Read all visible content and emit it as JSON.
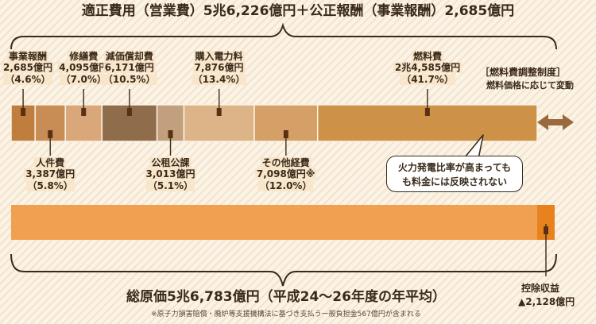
{
  "top_title": "適正費用（営業費）5兆6,226億円＋公正報酬（事業報酬）2,685億円",
  "bottom_title": "総原価5兆6,783億円（平成24～26年度の年平均）",
  "footnote": "※原子力損害賠償・廃炉等支援機構法に基づき支払う一般負担金567億円が含まれる",
  "fuel_system": {
    "title": "［燃料費調整制度］",
    "subtitle": "燃料価格に応じて変動"
  },
  "bubble": {
    "line1": "火力発電比率が高まっても",
    "line2": "も料金には反映されない"
  },
  "deduction": {
    "name": "控除収益",
    "amount": "▲2,128億円"
  },
  "colors": {
    "top_bar": [
      "#bf7d3e",
      "#c88d55",
      "#d9a77a",
      "#8f6c4a",
      "#c2a07e",
      "#ddb488",
      "#d5a067",
      "#cd9148"
    ],
    "bottom_bar": "#f0a050",
    "bottom_deduction": "#e8821e",
    "arrow": "#9a6a3e"
  },
  "chart_data": {
    "type": "bar",
    "categories": [
      "事業報酬",
      "人件費",
      "修繕費",
      "減価償却費",
      "公租公課",
      "購入電力料",
      "その他経費",
      "燃料費"
    ],
    "values": [
      2685,
      3387,
      4095,
      6171,
      3013,
      7876,
      7098,
      24585
    ],
    "amount_labels": [
      "2,685億円",
      "3,387億円",
      "4,095億円",
      "6,171億円",
      "3,013億円",
      "7,876億円",
      "7,098億円※",
      "2兆4,585億円"
    ],
    "percent_labels": [
      "（4.6%）",
      "（5.8%）",
      "（7.0%）",
      "（10.5%）",
      "（5.1%）",
      "（13.4%）",
      "（12.0%）",
      "（41.7%）"
    ],
    "percents": [
      4.6,
      5.8,
      7.0,
      10.5,
      5.1,
      13.4,
      12.0,
      41.7
    ],
    "total": 56783,
    "deduction": 2128
  }
}
